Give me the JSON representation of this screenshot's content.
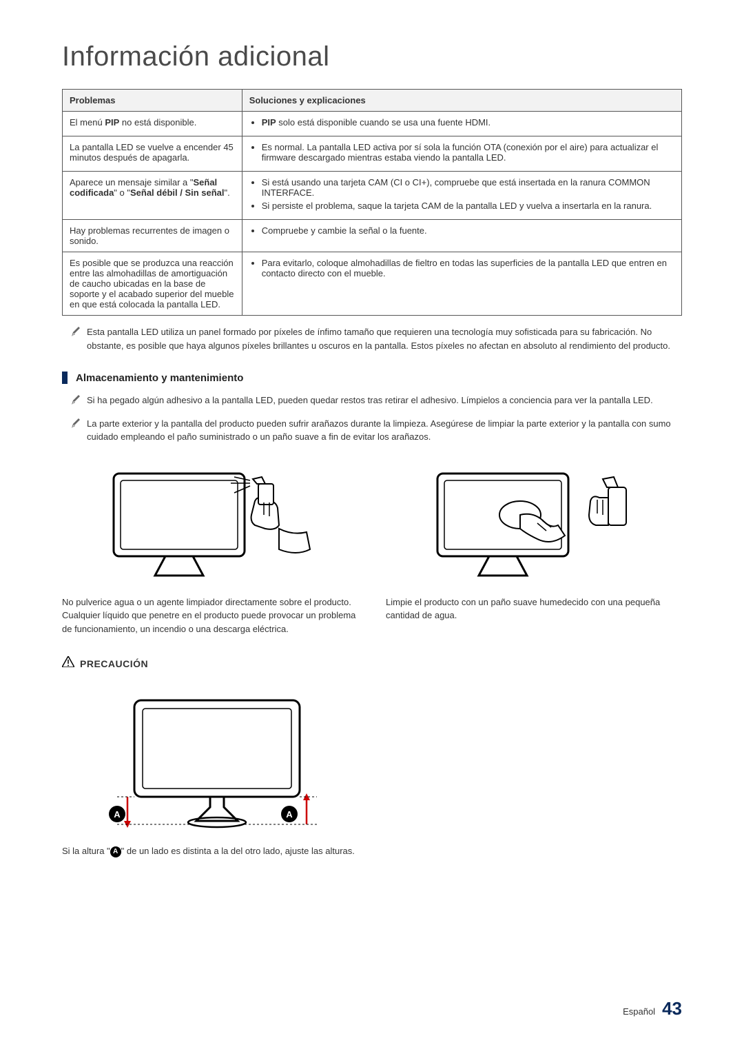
{
  "page": {
    "title": "Información adicional",
    "footer_lang": "Español",
    "footer_page": "43"
  },
  "table": {
    "headers": {
      "col1": "Problemas",
      "col2": "Soluciones y explicaciones"
    },
    "rows": [
      {
        "problem_html": "El menú <b>PIP</b> no está disponible.",
        "solutions": [
          "<b>PIP</b> solo está disponible cuando se usa una fuente HDMI."
        ]
      },
      {
        "problem_html": "La pantalla LED se vuelve a encender 45 minutos después de apagarla.",
        "solutions": [
          "Es normal. La pantalla LED activa por sí sola la función OTA (conexión por el aire) para actualizar el firmware descargado mientras estaba viendo la pantalla LED."
        ]
      },
      {
        "problem_html": "Aparece un mensaje similar a \"<b>Señal codificada</b>\" o \"<b>Señal débil / Sin señal</b>\".",
        "solutions": [
          "Si está usando una tarjeta CAM (CI o CI+), compruebe que está insertada en la ranura COMMON INTERFACE.",
          "Si persiste el problema, saque la tarjeta CAM de la pantalla LED y vuelva a insertarla en la ranura."
        ]
      },
      {
        "problem_html": "Hay problemas recurrentes de imagen o sonido.",
        "solutions": [
          "Compruebe y cambie la señal o la fuente."
        ]
      },
      {
        "problem_html": "Es posible que se produzca una reacción entre las almohadillas de amortiguación de caucho ubicadas en la base de soporte y el acabado superior del mueble en que está colocada la pantalla LED.",
        "solutions": [
          "Para evitarlo, coloque almohadillas de fieltro en todas las superficies de la pantalla LED que entren en contacto directo con el mueble."
        ]
      }
    ]
  },
  "notes": {
    "pixel_note": "Esta pantalla LED utiliza un panel formado por píxeles de ínfimo tamaño que requieren una tecnología muy sofisticada para su fabricación. No obstante, es posible que haya algunos píxeles brillantes u oscuros en la pantalla. Estos píxeles no afectan en absoluto al rendimiento del producto.",
    "section_title": "Almacenamiento y mantenimiento",
    "adhesive_note": "Si ha pegado algún adhesivo a la pantalla LED, pueden quedar restos tras retirar el adhesivo. Límpielos a conciencia para ver la pantalla LED.",
    "scratch_note": "La parte exterior y la pantalla del producto pueden sufrir arañazos durante la limpieza. Asegúrese de limpiar la parte exterior y la pantalla con sumo cuidado empleando el paño suministrado o un paño suave a fin de evitar los arañazos."
  },
  "cleaning": {
    "left_caption": "No pulverice agua o un agente limpiador directamente sobre el producto. Cualquier líquido que penetre en el producto puede provocar un problema de funcionamiento, un incendio o una descarga eléctrica.",
    "right_caption": "Limpie el producto con un paño suave humedecido con una pequeña cantidad de agua."
  },
  "precaution": {
    "label": "PRECAUCIÓN",
    "caption_pre": "Si la altura \"",
    "caption_post": "\" de un lado es distinta a la del otro lado, ajuste las alturas.",
    "letter": "A"
  },
  "colors": {
    "title_color": "#4a4a4a",
    "bar_color": "#0a2a5c",
    "text_color": "#333333"
  }
}
